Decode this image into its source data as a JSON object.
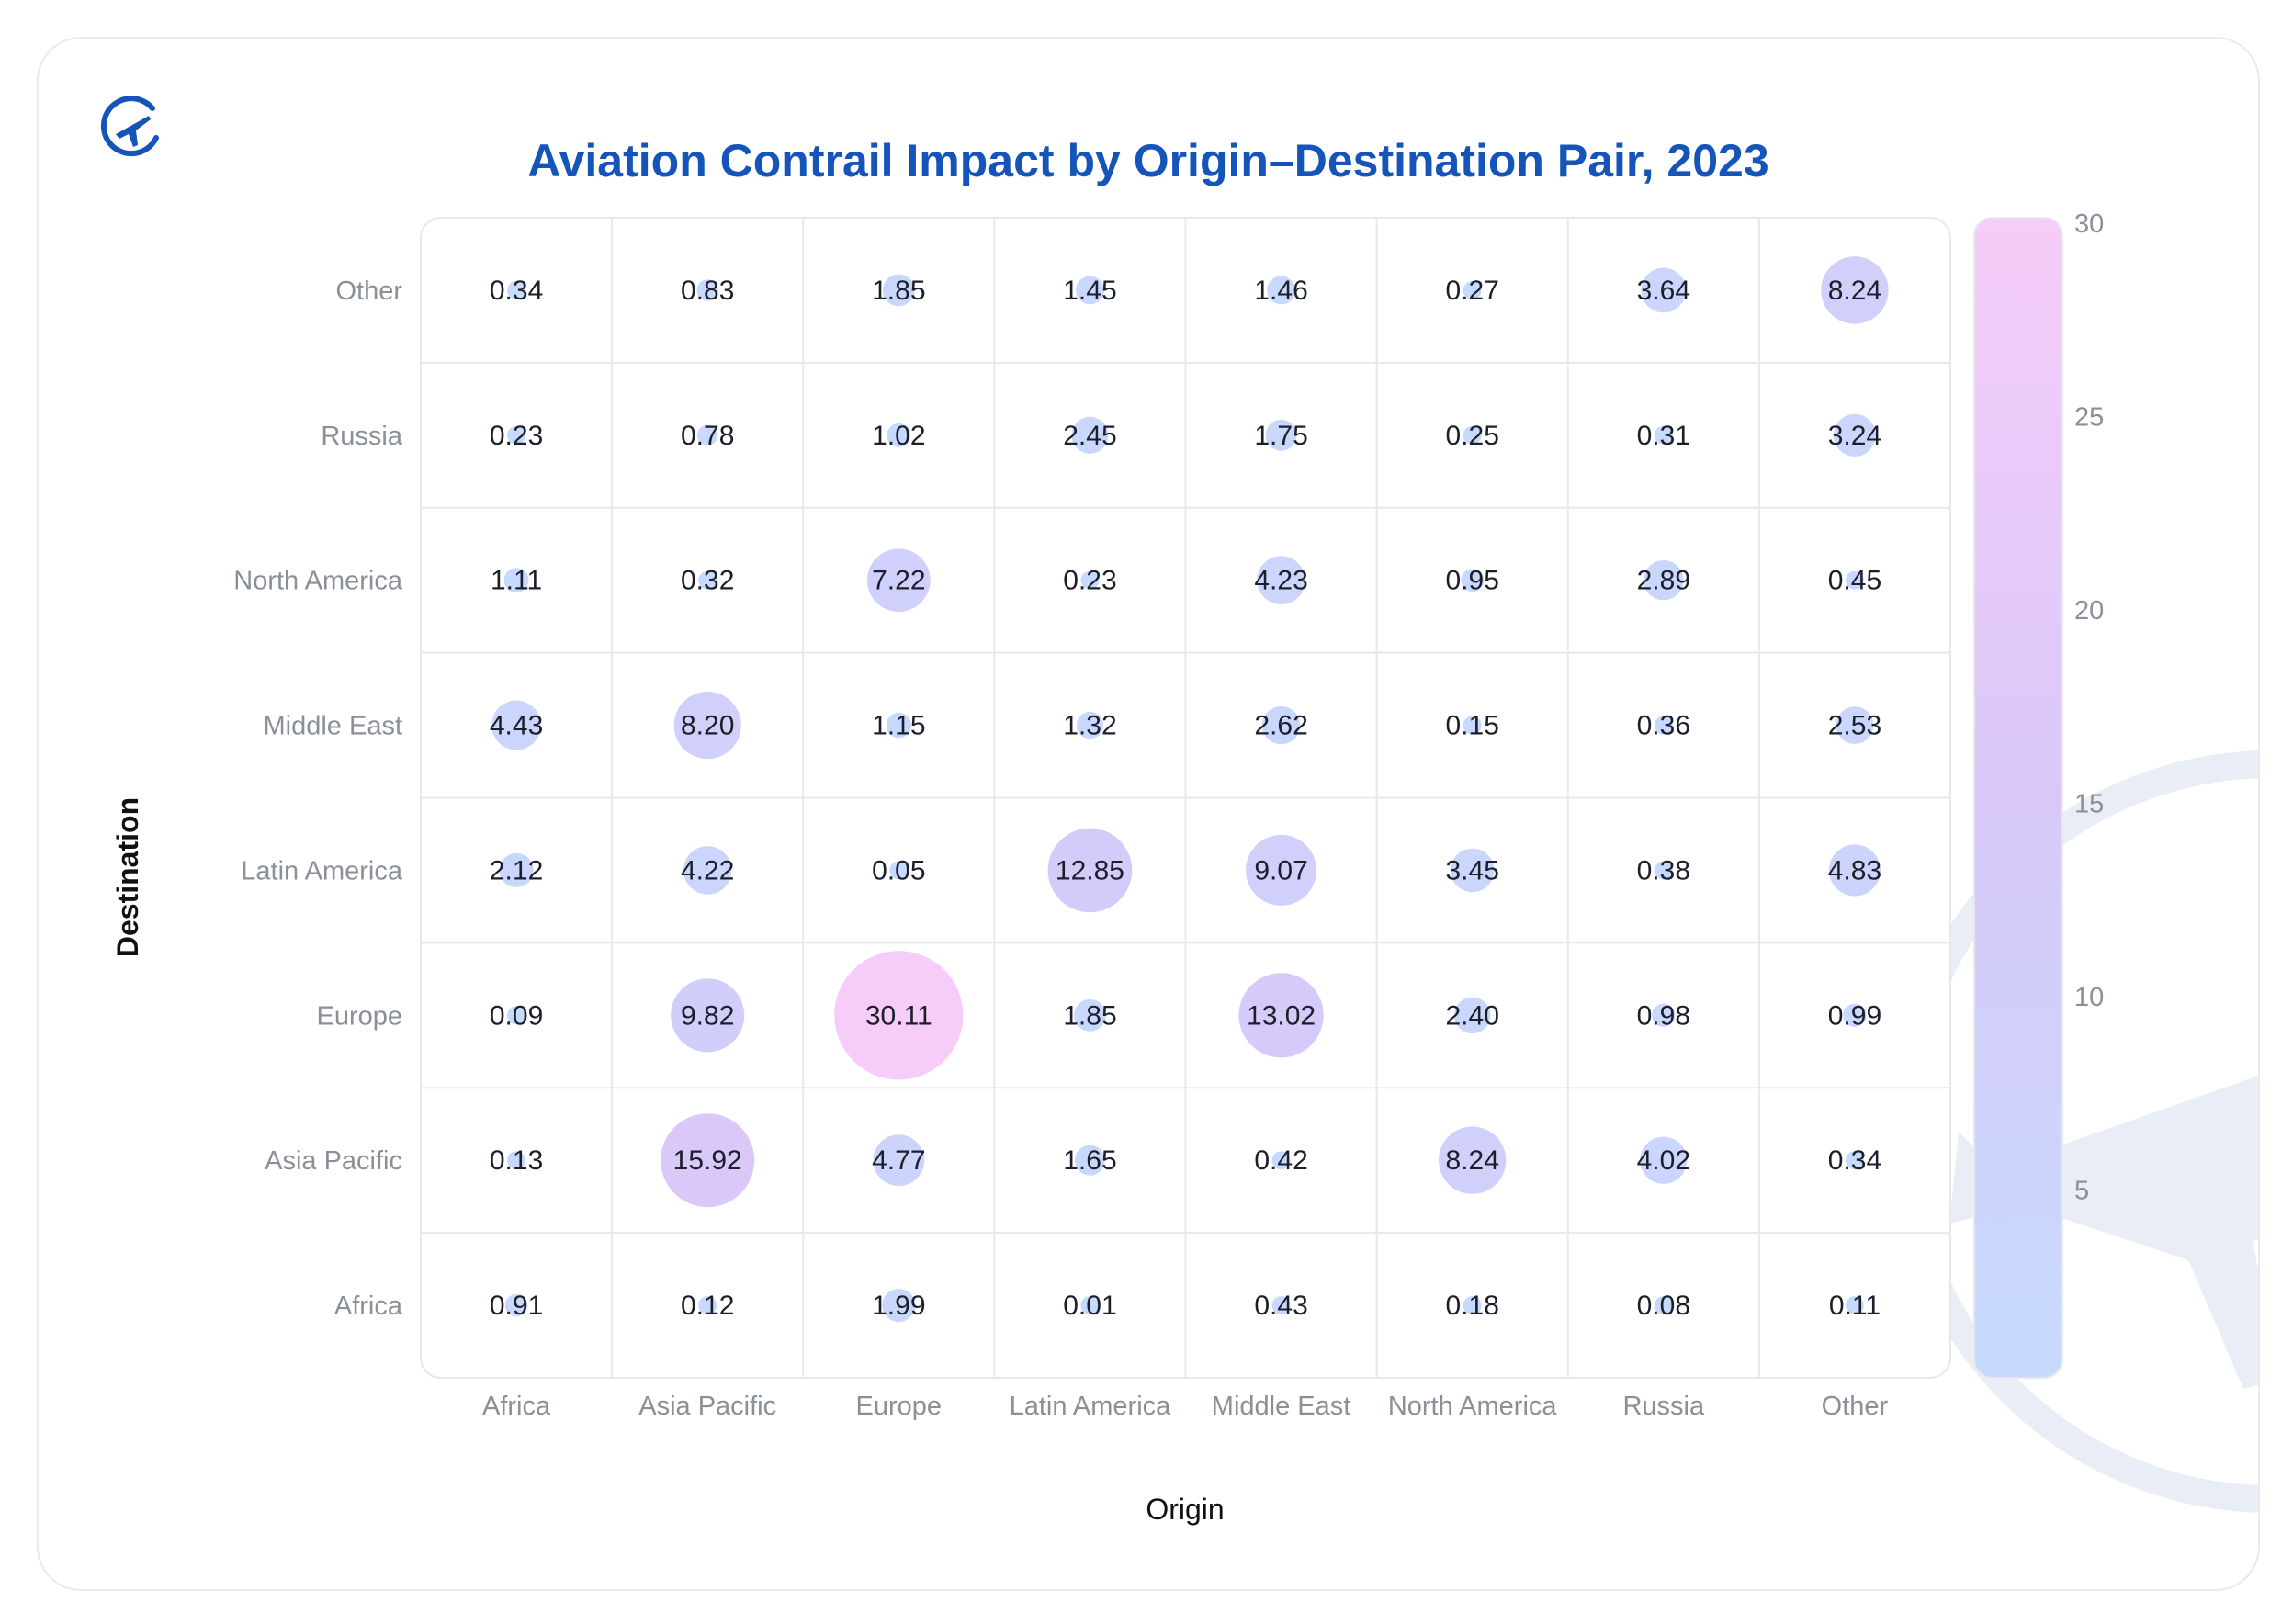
{
  "header": {
    "title": "Aviation Contrail Impact by Origin–Destination Pair, 2023"
  },
  "icons": {
    "logo": "plane-circle-icon",
    "watermark": "plane-watermark-icon"
  },
  "colors": {
    "title": "#1554b8",
    "scale_low": "#c7dbff",
    "scale_mid": "#d7c8f8",
    "scale_high": "#f7cdf7"
  },
  "chart_data": {
    "type": "heatmap",
    "title": "Aviation Contrail Impact by Origin–Destination Pair, 2023",
    "xlabel": "Origin",
    "ylabel": "Destination",
    "x_categories": [
      "Africa",
      "Asia Pacific",
      "Europe",
      "Latin America",
      "Middle East",
      "North America",
      "Russia",
      "Other"
    ],
    "y_categories": [
      "Other",
      "Russia",
      "North America",
      "Middle East",
      "Latin America",
      "Europe",
      "Asia Pacific",
      "Africa"
    ],
    "values": [
      [
        "0.34",
        "0.83",
        "1.85",
        "1.45",
        "1.46",
        "0.27",
        "3.64",
        "8.24"
      ],
      [
        "0.23",
        "0.78",
        "1.02",
        "2.45",
        "1.75",
        "0.25",
        "0.31",
        "3.24"
      ],
      [
        "1.11",
        "0.32",
        "7.22",
        "0.23",
        "4.23",
        "0.95",
        "2.89",
        "0.45"
      ],
      [
        "4.43",
        "8.20",
        "1.15",
        "1.32",
        "2.62",
        "0.15",
        "0.36",
        "2.53"
      ],
      [
        "2.12",
        "4.22",
        "0.05",
        "12.85",
        "9.07",
        "3.45",
        "0.38",
        "4.83"
      ],
      [
        "0.09",
        "9.82",
        "30.11",
        "1.85",
        "13.02",
        "2.40",
        "0.98",
        "0.99"
      ],
      [
        "0.13",
        "15.92",
        "4.77",
        "1.65",
        "0.42",
        "8.24",
        "4.02",
        "0.34"
      ],
      [
        "0.91",
        "0.12",
        "1.99",
        "0.01",
        "0.43",
        "0.18",
        "0.08",
        "0.11"
      ]
    ],
    "colorbar": {
      "min": 0,
      "max": 30,
      "ticks": [
        "5",
        "10",
        "15",
        "20",
        "25",
        "30"
      ]
    }
  }
}
